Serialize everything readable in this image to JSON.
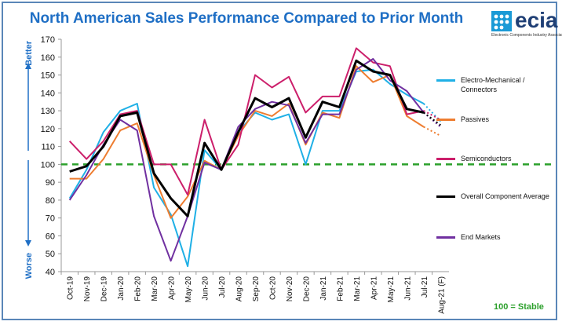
{
  "title": "North American Sales Performance Compared to Prior Month",
  "logo": {
    "text": "ecia",
    "subtitle": "Electronic Components Industry Association"
  },
  "axis_labels": {
    "better": "Better",
    "worse": "Worse"
  },
  "stable_note": "100 = Stable",
  "chart_data": {
    "type": "line",
    "title": "North American Sales Performance Compared to Prior Month",
    "xlabel": "",
    "ylabel": "",
    "ylim": [
      40,
      170
    ],
    "yticks": [
      40,
      50,
      60,
      70,
      80,
      90,
      100,
      110,
      120,
      130,
      140,
      150,
      160,
      170
    ],
    "categories": [
      "Oct-19",
      "Nov-19",
      "Dec-19",
      "Jan-20",
      "Feb-20",
      "Mar-20",
      "Apr-20",
      "May-20",
      "Jun-20",
      "Jul-20",
      "Aug-20",
      "Sep-20",
      "Oct-20",
      "Nov-20",
      "Dec-20",
      "Jan-21",
      "Feb-21",
      "Mar-21",
      "Apr-21",
      "May-21",
      "Jun-21",
      "Jul-21",
      "Aug-21 (F)"
    ],
    "reference_line": {
      "value": 100,
      "color": "#2ca02c",
      "style": "dashed"
    },
    "grid": false,
    "legend_position": "right",
    "series": [
      {
        "name": "Electro-Mechanical / Connectors",
        "color": "#1fb0e6",
        "values": [
          81,
          97,
          118,
          130,
          134,
          87,
          72,
          43,
          108,
          97,
          118,
          129,
          125,
          128,
          100,
          130,
          130,
          152,
          153,
          145,
          139,
          134,
          null
        ],
        "forecast": [
          134,
          124
        ]
      },
      {
        "name": "Passives",
        "color": "#ee7d30",
        "values": [
          92,
          92,
          103,
          119,
          123,
          94,
          70,
          82,
          102,
          97,
          116,
          130,
          127,
          134,
          111,
          129,
          126,
          155,
          146,
          150,
          127,
          121,
          null
        ],
        "forecast": [
          121,
          116
        ]
      },
      {
        "name": "Semiconductors",
        "color": "#cc1f6b",
        "values": [
          113,
          103,
          113,
          128,
          130,
          100,
          100,
          83,
          125,
          97,
          111,
          150,
          143,
          149,
          129,
          138,
          138,
          165,
          157,
          155,
          128,
          130,
          null
        ],
        "forecast": [
          130,
          125
        ]
      },
      {
        "name": "Overall Component Average",
        "color": "#000000",
        "values": [
          96,
          99,
          110,
          127,
          129,
          95,
          81,
          71,
          112,
          97,
          118,
          137,
          132,
          137,
          115,
          135,
          132,
          158,
          152,
          150,
          131,
          129,
          null
        ],
        "forecast": [
          129,
          122
        ]
      },
      {
        "name": "End Markets",
        "color": "#7030a0",
        "values": [
          80,
          94,
          111,
          125,
          119,
          71,
          46,
          71,
          101,
          97,
          121,
          131,
          135,
          133,
          112,
          128,
          128,
          153,
          159,
          147,
          141,
          129,
          null
        ],
        "forecast": [
          129,
          121
        ]
      }
    ]
  }
}
